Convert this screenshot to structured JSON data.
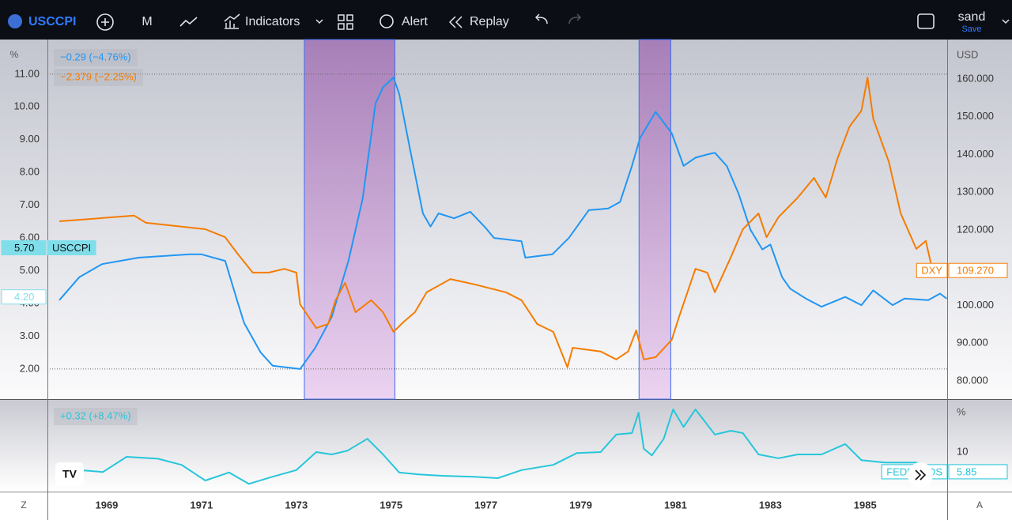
{
  "toolbar": {
    "symbol": "USCCPI",
    "interval": "M",
    "indicators": "Indicators",
    "alert": "Alert",
    "replay": "Replay",
    "user": "sand",
    "save": "Save"
  },
  "corners": {
    "left": "Z",
    "right": "A"
  },
  "chart_data": [
    {
      "type": "line",
      "y_label": "%",
      "y2_label": "USD",
      "xlim": [
        1967.75,
        1986.73
      ],
      "xticks": [
        1969,
        1971,
        1973,
        1975,
        1977,
        1979,
        1981,
        1983,
        1985
      ],
      "ylim": [
        1.08,
        12.01
      ],
      "yticks": [
        {
          "value": 2,
          "label": "2.00"
        },
        {
          "value": 3,
          "label": "3.00"
        },
        {
          "value": 4,
          "label": "4.00"
        },
        {
          "value": 5,
          "label": "5.00"
        },
        {
          "value": 6,
          "label": "6.00"
        },
        {
          "value": 7,
          "label": "7.00"
        },
        {
          "value": 8,
          "label": "8.00"
        },
        {
          "value": 9,
          "label": "9.00"
        },
        {
          "value": 10,
          "label": "10.00"
        },
        {
          "value": 11,
          "label": "11.00"
        }
      ],
      "y2lim": [
        75.18,
        170.05
      ],
      "y2ticks": [
        {
          "value": 80,
          "label": "80.000"
        },
        {
          "value": 90,
          "label": "90.000"
        },
        {
          "value": 100,
          "label": "100.000"
        },
        {
          "value": 110,
          "label": "110.000"
        },
        {
          "value": 120,
          "label": "120.000"
        },
        {
          "value": 130,
          "label": "130.000"
        },
        {
          "value": 140,
          "label": "140.000"
        },
        {
          "value": 150,
          "label": "150.000"
        },
        {
          "value": 160,
          "label": "160.000"
        }
      ],
      "shaded_periods": [
        [
          1973.17,
          1975.08
        ],
        [
          1980.23,
          1980.9
        ]
      ],
      "series": [
        {
          "name": "USCCPI",
          "color": "#2196f3",
          "axis": "y",
          "change_label": "−0.29 (−4.76%)",
          "x": [
            1968.0,
            1968.42,
            1968.9,
            1969.67,
            1970.75,
            1971.0,
            1971.5,
            1971.75,
            1971.9,
            1972.25,
            1972.5,
            1973.08,
            1973.4,
            1973.75,
            1974.1,
            1974.4,
            1974.67,
            1974.83,
            1975.05,
            1975.17,
            1975.4,
            1975.67,
            1975.83,
            1976.0,
            1976.33,
            1976.67,
            1977.0,
            1977.17,
            1977.75,
            1977.83,
            1978.4,
            1978.75,
            1979.17,
            1979.58,
            1979.83,
            1980.08,
            1980.25,
            1980.58,
            1980.92,
            1981.17,
            1981.42,
            1981.67,
            1981.83,
            1982.08,
            1982.33,
            1982.58,
            1982.83,
            1983.0,
            1983.25,
            1983.42,
            1983.75,
            1984.08,
            1984.58,
            1984.92,
            1985.17,
            1985.58,
            1985.83,
            1986.33,
            1986.58,
            1986.72
          ],
          "values": [
            4.1,
            4.8,
            5.2,
            5.4,
            5.5,
            5.5,
            5.3,
            4.1,
            3.4,
            2.5,
            2.1,
            2.0,
            2.65,
            3.6,
            5.3,
            7.2,
            10.1,
            10.6,
            10.9,
            10.4,
            8.7,
            6.75,
            6.35,
            6.75,
            6.6,
            6.8,
            6.3,
            6.0,
            5.9,
            5.4,
            5.5,
            6.0,
            6.85,
            6.9,
            7.1,
            8.2,
            9.05,
            9.85,
            9.2,
            8.2,
            8.45,
            8.55,
            8.6,
            8.2,
            7.35,
            6.25,
            5.65,
            5.8,
            4.8,
            4.45,
            4.15,
            3.9,
            4.2,
            3.95,
            4.4,
            3.95,
            4.15,
            4.1,
            4.3,
            4.15
          ]
        },
        {
          "name": "DXY",
          "color": "#f57c00",
          "axis": "y2",
          "change_label": "−2.379 (−2.25%)",
          "x": [
            1968.0,
            1969.58,
            1969.83,
            1971.08,
            1971.5,
            1971.75,
            1972.08,
            1972.42,
            1972.75,
            1973.0,
            1973.08,
            1973.42,
            1973.67,
            1973.83,
            1974.03,
            1974.25,
            1974.58,
            1974.83,
            1975.05,
            1975.25,
            1975.5,
            1975.75,
            1976.25,
            1976.75,
            1977.42,
            1977.75,
            1978.08,
            1978.42,
            1978.72,
            1978.83,
            1979.42,
            1979.75,
            1980.0,
            1980.17,
            1980.33,
            1980.58,
            1980.92,
            1981.08,
            1981.42,
            1981.67,
            1981.83,
            1982.17,
            1982.42,
            1982.75,
            1982.92,
            1983.17,
            1983.58,
            1983.92,
            1984.17,
            1984.42,
            1984.67,
            1984.92,
            1985.05,
            1985.17,
            1985.5,
            1985.75,
            1986.08,
            1986.28,
            1986.45,
            1986.67
          ],
          "values": [
            122.3,
            123.8,
            121.9,
            120.2,
            118.1,
            113.9,
            108.7,
            108.7,
            109.7,
            108.7,
            100.3,
            94.0,
            95.1,
            101.4,
            106.0,
            98.2,
            101.4,
            98.2,
            93.0,
            95.5,
            98.2,
            103.5,
            107.0,
            105.6,
            103.5,
            101.4,
            95.1,
            93.0,
            83.6,
            88.8,
            87.8,
            85.7,
            87.8,
            93.4,
            85.7,
            86.3,
            90.9,
            97.2,
            109.7,
            108.7,
            103.5,
            112.9,
            120.2,
            124.4,
            118.1,
            123.4,
            128.6,
            133.8,
            128.6,
            139.1,
            147.4,
            151.6,
            160.4,
            149.5,
            138.0,
            124.4,
            115.0,
            117.1,
            107.6,
            109.3
          ]
        }
      ],
      "price_labels": [
        {
          "value": 5.7,
          "label": "5.70",
          "name": "USCCPI",
          "axis": "y",
          "color": "#80deea"
        },
        {
          "value": 4.2,
          "label": "4.20",
          "axis": "y",
          "color": "#80deea"
        },
        {
          "value": 109.27,
          "label": "109.270",
          "name": "DXY",
          "axis": "y2",
          "color": "#f57c00"
        }
      ]
    },
    {
      "type": "line",
      "y_label": "%",
      "xlim": [
        1967.75,
        1986.73
      ],
      "ylim": [
        2,
        21
      ],
      "yticks": [
        10
      ],
      "series": [
        {
          "name": "FEDFUNDS",
          "color": "#26c6da",
          "change_label": "+0.32 (+8.47%)",
          "x": [
            1968.0,
            1968.42,
            1968.92,
            1969.42,
            1970.08,
            1970.58,
            1971.08,
            1971.58,
            1972.0,
            1972.5,
            1973.0,
            1973.42,
            1973.75,
            1974.08,
            1974.5,
            1974.83,
            1975.17,
            1975.58,
            1976.08,
            1976.75,
            1977.25,
            1977.75,
            1978.42,
            1978.92,
            1979.42,
            1979.75,
            1980.08,
            1980.22,
            1980.33,
            1980.5,
            1980.75,
            1980.95,
            1981.17,
            1981.42,
            1981.83,
            1982.17,
            1982.42,
            1982.75,
            1983.17,
            1983.58,
            1984.08,
            1984.58,
            1984.92,
            1985.42,
            1986.08,
            1986.33
          ],
          "values": [
            5.7,
            6.2,
            5.8,
            9.0,
            8.6,
            7.3,
            4.0,
            5.7,
            3.3,
            4.8,
            6.2,
            10.0,
            9.5,
            10.3,
            12.8,
            9.5,
            5.7,
            5.3,
            5.0,
            4.8,
            4.5,
            6.2,
            7.3,
            9.8,
            10.0,
            13.7,
            14.0,
            18.3,
            10.7,
            9.3,
            12.8,
            19.0,
            15.3,
            19.0,
            13.7,
            14.5,
            14.0,
            9.5,
            8.7,
            9.5,
            9.5,
            11.7,
            8.3,
            7.8,
            7.8,
            6.7
          ]
        }
      ],
      "price_labels": [
        {
          "value": 5.85,
          "label": "5.85",
          "name": "FEDFUNDS",
          "color": "#26c6da"
        }
      ]
    }
  ]
}
